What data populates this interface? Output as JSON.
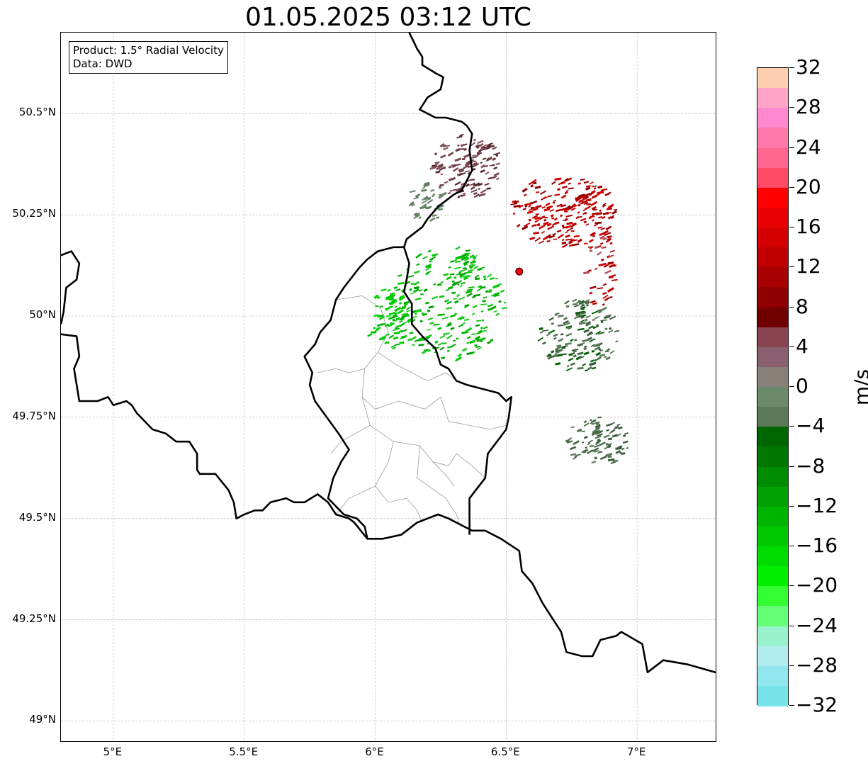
{
  "title": "01.05.2025 03:12 UTC",
  "info_box": {
    "product": "Product: 1.5° Radial Velocity",
    "data_source": "Data: DWD"
  },
  "map": {
    "extent": {
      "lon_min": 4.8,
      "lon_max": 7.3,
      "lat_min": 48.95,
      "lat_max": 50.7
    },
    "latitude_labels": [
      {
        "value": 50.5,
        "text": "50.5°N"
      },
      {
        "value": 50.25,
        "text": "50.25°N"
      },
      {
        "value": 50.0,
        "text": "50°N"
      },
      {
        "value": 49.75,
        "text": "49.75°N"
      },
      {
        "value": 49.5,
        "text": "49.5°N"
      },
      {
        "value": 49.25,
        "text": "49.25°N"
      },
      {
        "value": 49.0,
        "text": "49°N"
      }
    ],
    "longitude_labels": [
      {
        "value": 5.0,
        "text": "5°E"
      },
      {
        "value": 5.5,
        "text": "5.5°E"
      },
      {
        "value": 6.0,
        "text": "6°E"
      },
      {
        "value": 6.5,
        "text": "6.5°E"
      },
      {
        "value": 7.0,
        "text": "7°E"
      }
    ],
    "gridlines": true,
    "radar_site": {
      "lon": 6.55,
      "lat": 50.11,
      "color": "#ff0000"
    },
    "national_borders": [
      [
        [
          4.8,
          50.15
        ],
        [
          4.84,
          50.16
        ],
        [
          4.87,
          50.13
        ],
        [
          4.86,
          50.09
        ],
        [
          4.82,
          50.07
        ],
        [
          4.81,
          50.01
        ],
        [
          4.8,
          49.98
        ]
      ],
      [
        [
          4.8,
          49.955
        ],
        [
          4.86,
          49.95
        ],
        [
          4.87,
          49.9
        ],
        [
          4.85,
          49.87
        ],
        [
          4.87,
          49.79
        ],
        [
          4.94,
          49.79
        ],
        [
          4.98,
          49.8
        ],
        [
          5.0,
          49.78
        ],
        [
          5.05,
          49.79
        ],
        [
          5.07,
          49.78
        ],
        [
          5.09,
          49.76
        ],
        [
          5.15,
          49.72
        ],
        [
          5.2,
          49.71
        ],
        [
          5.24,
          49.69
        ],
        [
          5.29,
          49.69
        ],
        [
          5.32,
          49.66
        ],
        [
          5.32,
          49.62
        ],
        [
          5.33,
          49.61
        ],
        [
          5.39,
          49.61
        ],
        [
          5.44,
          49.57
        ],
        [
          5.46,
          49.54
        ],
        [
          5.47,
          49.5
        ],
        [
          5.5,
          49.51
        ],
        [
          5.54,
          49.52
        ],
        [
          5.57,
          49.52
        ],
        [
          5.6,
          49.54
        ],
        [
          5.66,
          49.55
        ],
        [
          5.69,
          49.54
        ],
        [
          5.73,
          49.54
        ],
        [
          5.78,
          49.56
        ],
        [
          5.82,
          49.54
        ],
        [
          5.85,
          49.51
        ],
        [
          5.9,
          49.5
        ],
        [
          5.92,
          49.49
        ],
        [
          5.97,
          49.45
        ],
        [
          6.03,
          49.45
        ],
        [
          6.1,
          49.46
        ],
        [
          6.16,
          49.49
        ],
        [
          6.2,
          49.5
        ],
        [
          6.24,
          49.51
        ],
        [
          6.28,
          49.5
        ],
        [
          6.37,
          49.47
        ],
        [
          6.42,
          49.47
        ],
        [
          6.48,
          49.45
        ],
        [
          6.55,
          49.42
        ],
        [
          6.56,
          49.37
        ],
        [
          6.6,
          49.34
        ],
        [
          6.64,
          49.29
        ],
        [
          6.67,
          49.26
        ],
        [
          6.71,
          49.22
        ],
        [
          6.73,
          49.17
        ],
        [
          6.79,
          49.16
        ],
        [
          6.83,
          49.16
        ],
        [
          6.86,
          49.2
        ],
        [
          6.92,
          49.21
        ],
        [
          6.94,
          49.22
        ],
        [
          7.02,
          49.19
        ],
        [
          7.04,
          49.12
        ],
        [
          7.1,
          49.15
        ],
        [
          7.19,
          49.14
        ],
        [
          7.3,
          49.12
        ]
      ],
      [
        [
          6.13,
          50.7
        ],
        [
          6.16,
          50.66
        ],
        [
          6.18,
          50.64
        ],
        [
          6.18,
          50.62
        ],
        [
          6.23,
          50.6
        ],
        [
          6.26,
          50.59
        ],
        [
          6.25,
          50.56
        ],
        [
          6.2,
          50.54
        ],
        [
          6.17,
          50.51
        ],
        [
          6.23,
          50.49
        ],
        [
          6.27,
          50.49
        ],
        [
          6.33,
          50.48
        ],
        [
          6.35,
          50.47
        ],
        [
          6.37,
          50.45
        ],
        [
          6.36,
          50.41
        ],
        [
          6.37,
          50.36
        ],
        [
          6.33,
          50.31
        ],
        [
          6.3,
          50.3
        ],
        [
          6.24,
          50.27
        ],
        [
          6.2,
          50.24
        ],
        [
          6.18,
          50.22
        ],
        [
          6.12,
          50.19
        ],
        [
          6.11,
          50.17
        ]
      ],
      [
        [
          6.11,
          50.17
        ],
        [
          6.13,
          50.13
        ],
        [
          6.12,
          50.09
        ],
        [
          6.11,
          50.06
        ],
        [
          6.14,
          50.03
        ],
        [
          6.14,
          49.98
        ],
        [
          6.18,
          49.95
        ],
        [
          6.23,
          49.92
        ],
        [
          6.25,
          49.88
        ],
        [
          6.28,
          49.87
        ],
        [
          6.31,
          49.84
        ],
        [
          6.35,
          49.83
        ],
        [
          6.41,
          49.82
        ],
        [
          6.47,
          49.81
        ],
        [
          6.5,
          49.79
        ],
        [
          6.52,
          49.8
        ],
        [
          6.51,
          49.75
        ],
        [
          6.5,
          49.72
        ],
        [
          6.43,
          49.66
        ],
        [
          6.42,
          49.6
        ],
        [
          6.36,
          49.55
        ],
        [
          6.36,
          49.46
        ]
      ],
      [
        [
          5.97,
          49.45
        ],
        [
          5.96,
          49.48
        ],
        [
          5.93,
          49.5
        ],
        [
          5.88,
          49.51
        ],
        [
          5.82,
          49.55
        ],
        [
          5.84,
          49.6
        ],
        [
          5.87,
          49.64
        ],
        [
          5.9,
          49.67
        ],
        [
          5.86,
          49.71
        ],
        [
          5.77,
          49.79
        ],
        [
          5.75,
          49.83
        ],
        [
          5.76,
          49.86
        ],
        [
          5.73,
          49.9
        ],
        [
          5.77,
          49.93
        ],
        [
          5.79,
          49.96
        ],
        [
          5.83,
          49.99
        ],
        [
          5.85,
          50.04
        ],
        [
          5.88,
          50.07
        ],
        [
          5.94,
          50.12
        ],
        [
          5.97,
          50.14
        ],
        [
          6.01,
          50.16
        ],
        [
          6.07,
          50.17
        ],
        [
          6.11,
          50.17
        ]
      ]
    ],
    "district_borders": [
      [
        [
          5.85,
          50.04
        ],
        [
          5.95,
          50.05
        ],
        [
          6.02,
          50.02
        ],
        [
          6.05,
          49.96
        ],
        [
          6.01,
          49.91
        ],
        [
          5.96,
          49.87
        ],
        [
          5.9,
          49.86
        ],
        [
          5.85,
          49.87
        ],
        [
          5.78,
          49.86
        ]
      ],
      [
        [
          6.01,
          49.91
        ],
        [
          6.08,
          49.88
        ],
        [
          6.14,
          49.86
        ],
        [
          6.2,
          49.84
        ],
        [
          6.27,
          49.86
        ],
        [
          6.31,
          49.84
        ]
      ],
      [
        [
          5.96,
          49.87
        ],
        [
          5.95,
          49.8
        ],
        [
          6.0,
          49.77
        ],
        [
          6.09,
          49.79
        ],
        [
          6.19,
          49.77
        ],
        [
          6.25,
          49.8
        ],
        [
          6.28,
          49.74
        ],
        [
          6.36,
          49.73
        ],
        [
          6.44,
          49.72
        ],
        [
          6.5,
          49.73
        ]
      ],
      [
        [
          5.95,
          49.8
        ],
        [
          5.98,
          49.73
        ],
        [
          6.07,
          49.69
        ],
        [
          6.17,
          49.68
        ],
        [
          6.22,
          49.64
        ],
        [
          6.28,
          49.63
        ],
        [
          6.31,
          49.66
        ],
        [
          6.37,
          49.63
        ],
        [
          6.42,
          49.6
        ]
      ],
      [
        [
          5.98,
          49.73
        ],
        [
          5.87,
          49.69
        ],
        [
          5.83,
          49.66
        ]
      ],
      [
        [
          6.07,
          49.69
        ],
        [
          6.05,
          49.64
        ],
        [
          6.0,
          49.58
        ],
        [
          5.9,
          49.55
        ],
        [
          5.85,
          49.51
        ]
      ],
      [
        [
          6.17,
          49.68
        ],
        [
          6.16,
          49.6
        ],
        [
          6.27,
          49.55
        ],
        [
          6.31,
          49.51
        ],
        [
          6.32,
          49.49
        ]
      ],
      [
        [
          6.0,
          49.58
        ],
        [
          6.05,
          49.54
        ],
        [
          6.12,
          49.55
        ],
        [
          6.16,
          49.52
        ],
        [
          6.18,
          49.49
        ]
      ],
      [
        [
          6.22,
          49.64
        ],
        [
          6.28,
          49.6
        ],
        [
          6.3,
          49.58
        ]
      ]
    ],
    "echo_regions": [
      {
        "name": "receding-north",
        "lon": 6.72,
        "lat": 50.26,
        "rlon": 0.2,
        "rlat": 0.09,
        "count": 220,
        "colors": [
          "#b00000",
          "#c80000",
          "#8b0000",
          "#d00000"
        ]
      },
      {
        "name": "receding-northwest",
        "lon": 6.35,
        "lat": 50.37,
        "rlon": 0.13,
        "rlat": 0.08,
        "count": 140,
        "colors": [
          "#7a4a50",
          "#8a5560",
          "#5a2a30",
          "#6a3a40"
        ]
      },
      {
        "name": "receding-east",
        "lon": 6.86,
        "lat": 50.12,
        "rlon": 0.06,
        "rlat": 0.1,
        "count": 50,
        "colors": [
          "#a00000",
          "#c00000",
          "#b84a55"
        ]
      },
      {
        "name": "approaching-west",
        "lon": 6.28,
        "lat": 50.03,
        "rlon": 0.22,
        "rlat": 0.14,
        "count": 260,
        "colors": [
          "#00b400",
          "#00c800",
          "#00a000",
          "#22cc22"
        ]
      },
      {
        "name": "approaching-southwest",
        "lon": 6.05,
        "lat": 49.99,
        "rlon": 0.08,
        "rlat": 0.08,
        "count": 70,
        "colors": [
          "#00c000",
          "#00d400"
        ]
      },
      {
        "name": "weak-east",
        "lon": 6.78,
        "lat": 49.95,
        "rlon": 0.15,
        "rlat": 0.09,
        "count": 150,
        "colors": [
          "#4a6a4a",
          "#5a7a5a",
          "#3a5a3a",
          "#006000"
        ]
      },
      {
        "name": "weak-southeast",
        "lon": 6.85,
        "lat": 49.69,
        "rlon": 0.12,
        "rlat": 0.06,
        "count": 90,
        "colors": [
          "#4a6a4a",
          "#5a7a5a",
          "#3a5a3a"
        ]
      },
      {
        "name": "weak-northwest",
        "lon": 6.2,
        "lat": 50.28,
        "rlon": 0.07,
        "rlat": 0.05,
        "count": 45,
        "colors": [
          "#5e7a5e",
          "#6b8a6b"
        ]
      }
    ]
  },
  "colorbar": {
    "label": "m/s",
    "min": -32,
    "max": 32,
    "step": 4,
    "tick_labels": [
      "32",
      "28",
      "24",
      "20",
      "16",
      "12",
      "8",
      "4",
      "0",
      "−4",
      "−8",
      "−12",
      "−16",
      "−20",
      "−24",
      "−28",
      "−32"
    ],
    "bands_top_to_bottom": [
      "#ffcfb0",
      "#ffa6c8",
      "#ff88d0",
      "#ff7aaa",
      "#ff6690",
      "#ff4a66",
      "#ff0000",
      "#e80000",
      "#d40000",
      "#c00000",
      "#a80000",
      "#900000",
      "#700000",
      "#884450",
      "#8a6070",
      "#888078",
      "#6a8a6a",
      "#5a7a5a",
      "#006600",
      "#007800",
      "#008c00",
      "#00a000",
      "#00b400",
      "#00c800",
      "#00dc00",
      "#00f000",
      "#33ff33",
      "#66ff77",
      "#99f2cc",
      "#b0ecf0",
      "#90e8ee",
      "#78e4ea"
    ]
  }
}
